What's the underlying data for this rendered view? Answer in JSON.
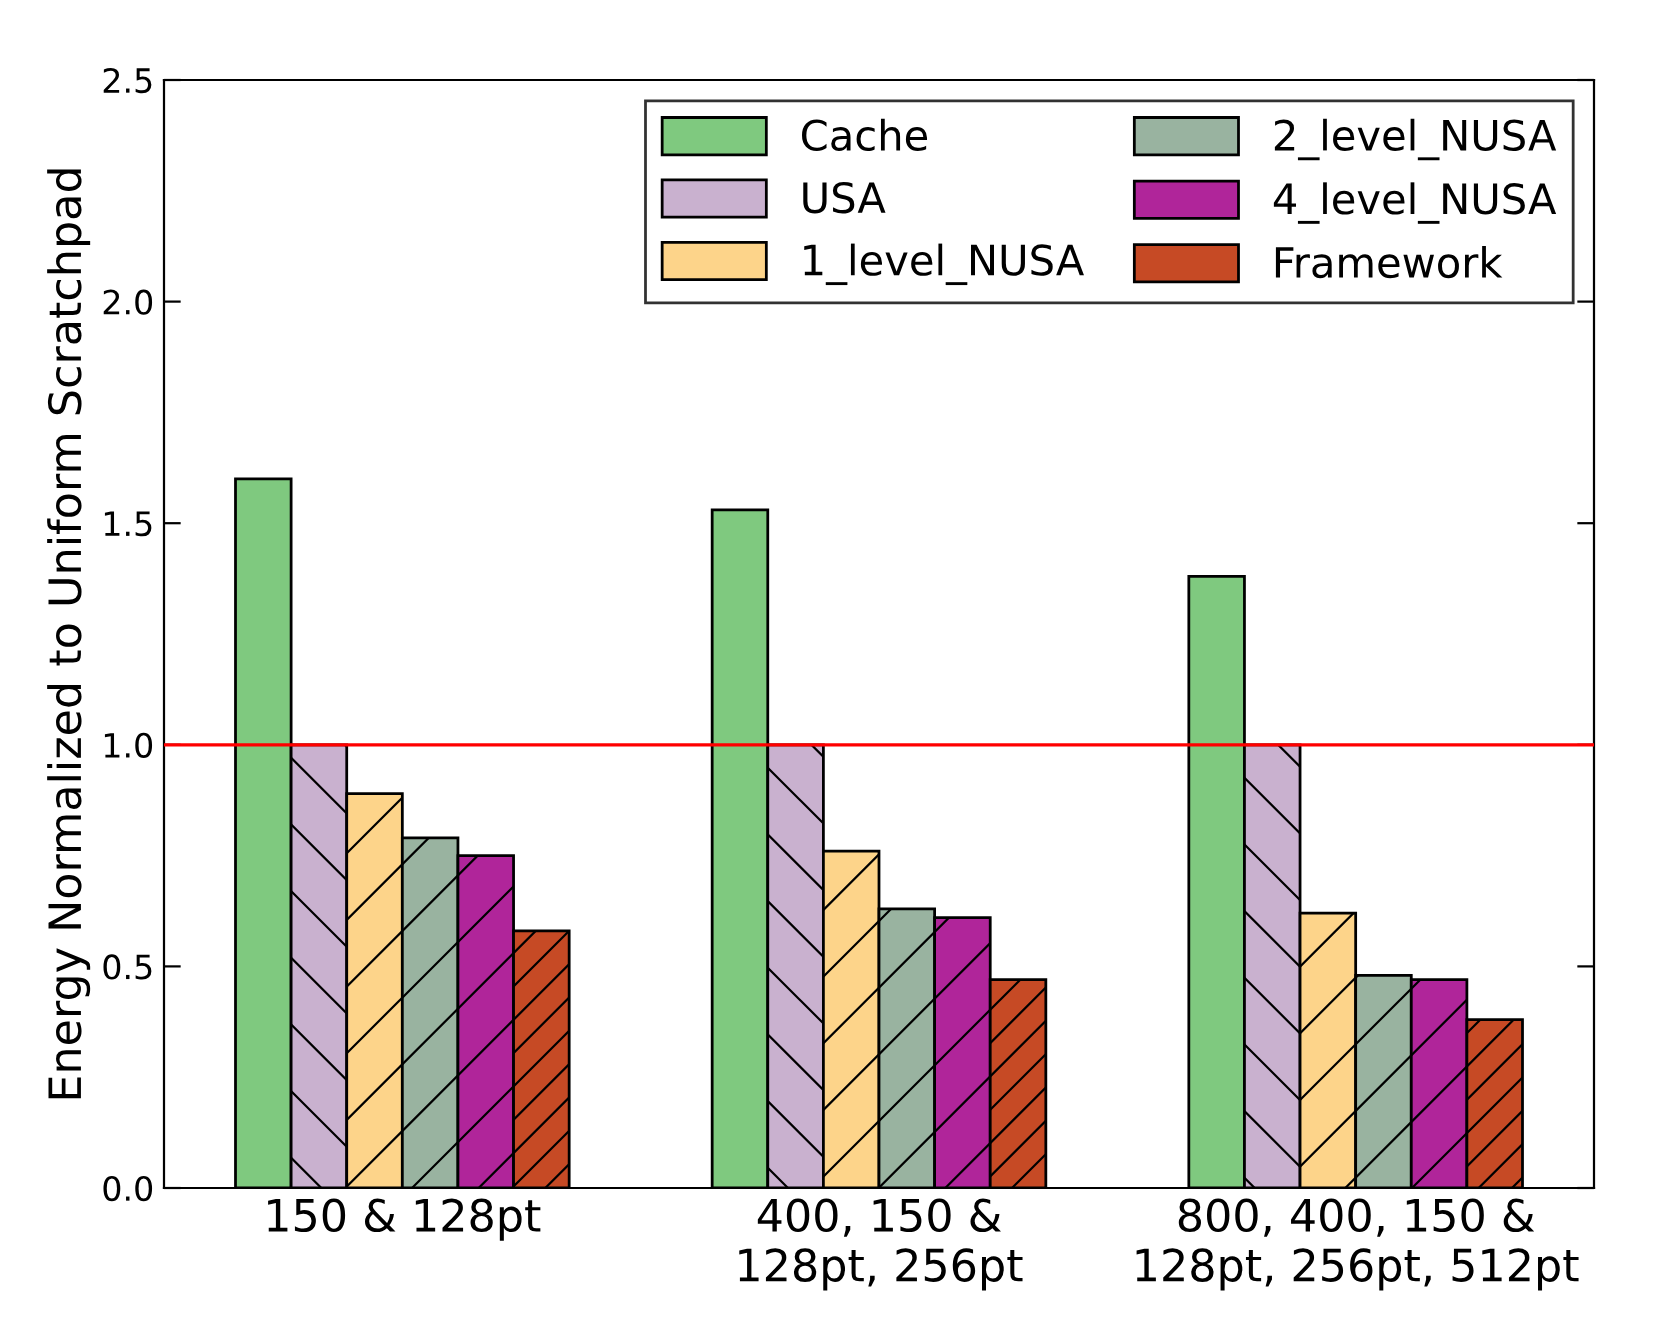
{
  "chart_data": {
    "type": "bar",
    "ylabel": "Energy Normalized to Uniform Scratchpad",
    "categories": [
      "150 & 128pt",
      "400, 150 &\n128pt, 256pt",
      "800, 400, 150 &\n128pt, 256pt, 512pt"
    ],
    "series": [
      {
        "name": "Cache",
        "color": "#7fc97f",
        "values": [
          1.6,
          1.53,
          1.38
        ]
      },
      {
        "name": "USA",
        "color": "#c9b1cf",
        "values": [
          1.0,
          1.0,
          1.0
        ]
      },
      {
        "name": "1_level_NUSA",
        "color": "#fdd48a",
        "values": [
          0.89,
          0.76,
          0.62
        ]
      },
      {
        "name": "2_level_NUSA",
        "color": "#99b3a0",
        "values": [
          0.79,
          0.63,
          0.48
        ]
      },
      {
        "name": "4_level_NUSA",
        "color": "#b0259a",
        "values": [
          0.75,
          0.61,
          0.47
        ]
      },
      {
        "name": "Framework",
        "color": "#c64a25",
        "values": [
          0.58,
          0.47,
          0.38
        ]
      }
    ],
    "ylim": [
      0,
      2.5
    ],
    "yticks": [
      {
        "value": 0,
        "label": "0.0"
      },
      {
        "value": 0.5,
        "label": "0.5"
      },
      {
        "value": 1,
        "label": "1.0"
      },
      {
        "value": 1.5,
        "label": "1.5"
      },
      {
        "value": 2,
        "label": "2.0"
      },
      {
        "value": 2.5,
        "label": "2.5"
      }
    ],
    "ref_lines": [
      {
        "axis": "y",
        "value": 1.0,
        "color": "#ff0000"
      }
    ],
    "legend": "top right",
    "grid": false
  }
}
